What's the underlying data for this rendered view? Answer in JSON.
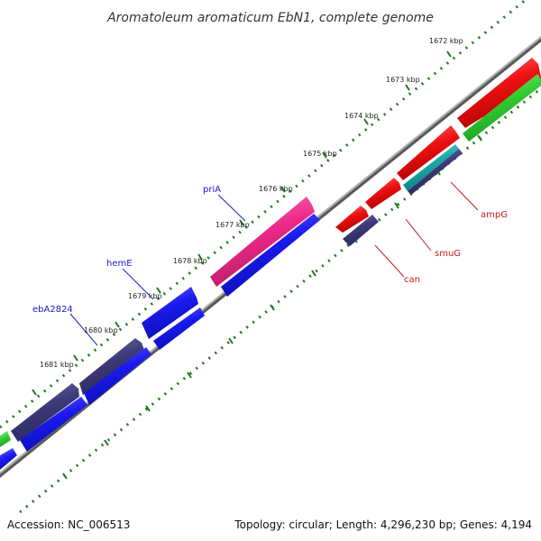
{
  "title": "Aromatoleum aromaticum EbN1, complete genome",
  "footer": {
    "accession": "Accession: NC_006513",
    "summary": "Topology: circular; Length: 4,296,230 bp; Genes: 4,194"
  },
  "colors": {
    "backbone": "#808080",
    "tick": "#1a7a1a",
    "label_blue": "#1a1acc",
    "label_red": "#cc1a1a",
    "blue": "#1a1aee",
    "purple": "#3d3a7a",
    "red": "#ee1111",
    "green": "#33cc33",
    "magenta": "#ee2a8a",
    "cyan": "#1aaaaa"
  },
  "ticks": [
    "1672 kbp",
    "1673 kbp",
    "1674 kbp",
    "1675 kbp",
    "1676 kbp",
    "1677 kbp",
    "1678 kbp",
    "1679 kbp",
    "1680 kbp",
    "1681 kbp"
  ],
  "gene_labels": [
    {
      "name": "priA",
      "color": "blue"
    },
    {
      "name": "hemE",
      "color": "blue"
    },
    {
      "name": "ebA2824",
      "color": "blue"
    },
    {
      "name": "ampG",
      "color": "red"
    },
    {
      "name": "smuG",
      "color": "red"
    },
    {
      "name": "can",
      "color": "red"
    }
  ]
}
